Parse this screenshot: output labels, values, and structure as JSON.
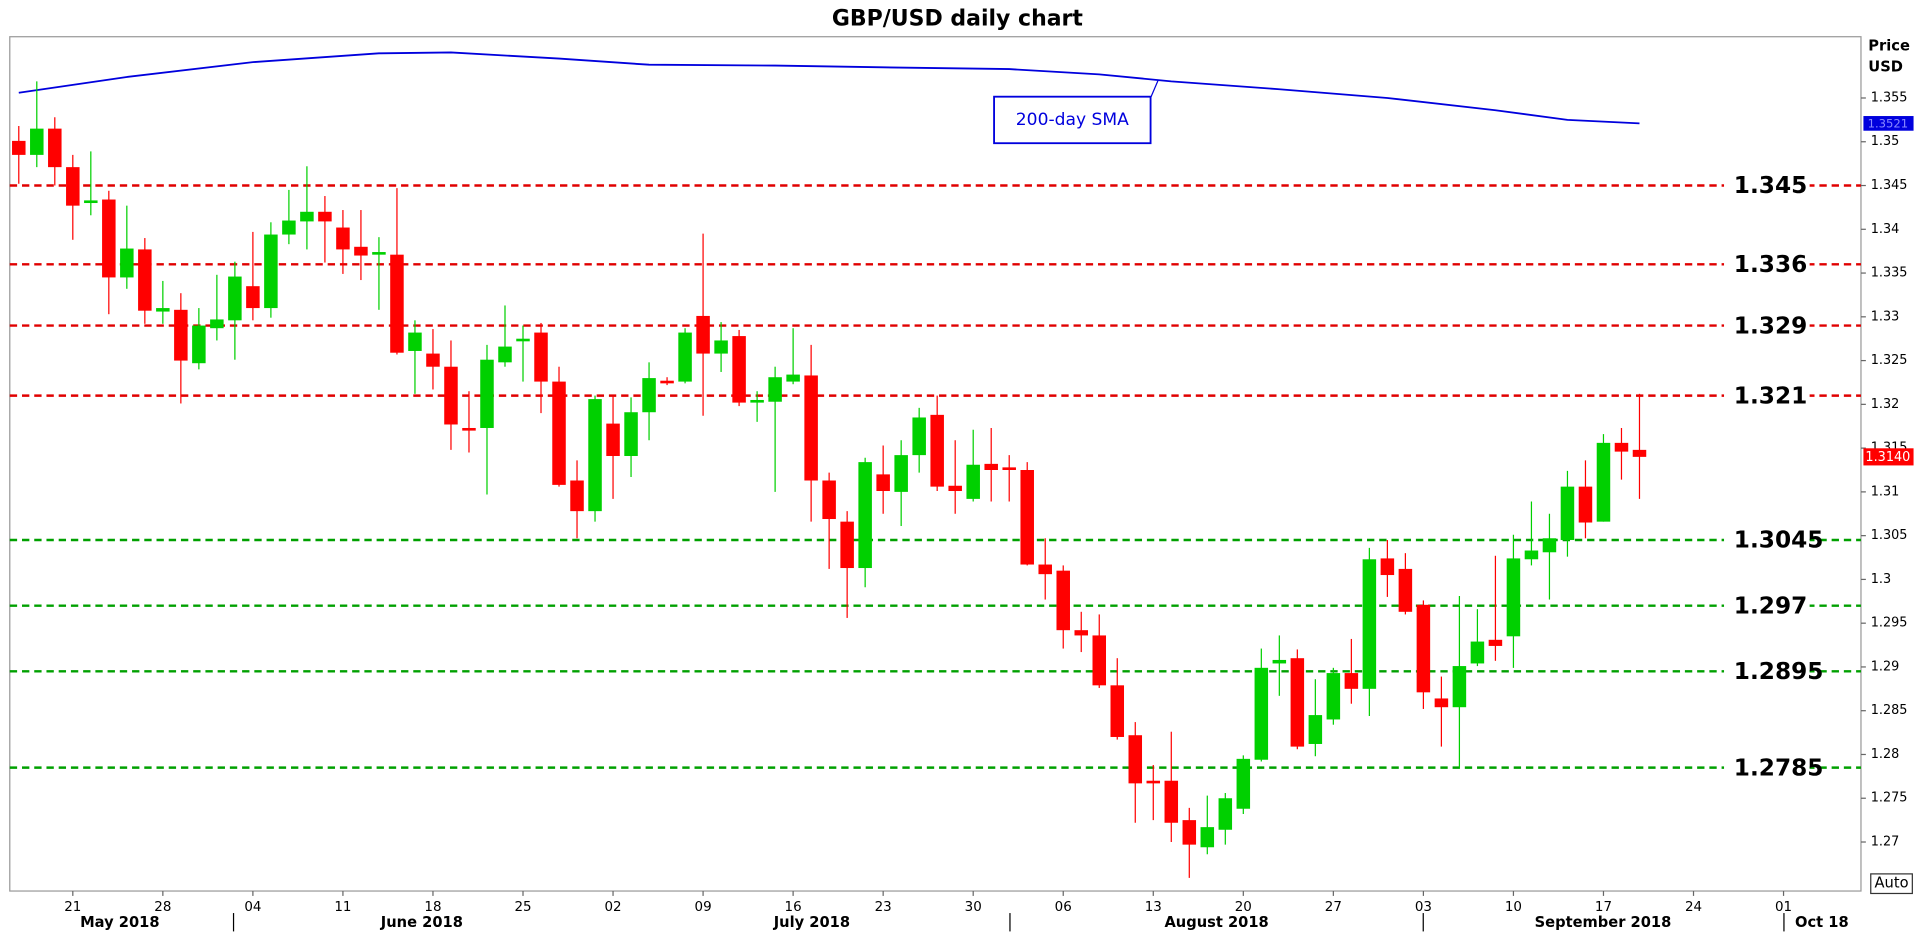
{
  "chart_data": {
    "type": "candlestick",
    "title": "GBP/USD daily chart",
    "y_axis_label": [
      "Price",
      "USD"
    ],
    "auto_label": "Auto",
    "xlim": [
      -0.5,
      102.3
    ],
    "ylim": [
      1.2644,
      1.362
    ],
    "yticks": [
      1.27,
      1.275,
      1.28,
      1.285,
      1.29,
      1.295,
      1.3,
      1.305,
      1.31,
      1.315,
      1.32,
      1.325,
      1.33,
      1.335,
      1.34,
      1.345,
      1.35,
      1.355
    ],
    "xticks": [
      {
        "value": 3,
        "label": "21"
      },
      {
        "value": 8,
        "label": "28"
      },
      {
        "value": 13,
        "label": "04"
      },
      {
        "value": 18,
        "label": "11"
      },
      {
        "value": 23,
        "label": "18"
      },
      {
        "value": 28,
        "label": "25"
      },
      {
        "value": 33,
        "label": "02"
      },
      {
        "value": 38,
        "label": "09"
      },
      {
        "value": 43,
        "label": "16"
      },
      {
        "value": 48,
        "label": "23"
      },
      {
        "value": 53,
        "label": "30"
      },
      {
        "value": 58,
        "label": "06"
      },
      {
        "value": 63,
        "label": "13"
      },
      {
        "value": 68,
        "label": "20"
      },
      {
        "value": 73,
        "label": "27"
      },
      {
        "value": 78,
        "label": "03"
      },
      {
        "value": 83,
        "label": "10"
      },
      {
        "value": 88,
        "label": "17"
      },
      {
        "value": 93,
        "label": "24"
      },
      {
        "value": 98,
        "label": "01"
      }
    ],
    "months": [
      "May 2018",
      "June 2018",
      "July 2018",
      "August 2018",
      "September 2018",
      "Oct 18"
    ],
    "up_color": "#00d000",
    "down_color": "#ff0000",
    "open": [
      1.3501,
      1.3485,
      1.3515,
      1.3471,
      1.343,
      1.3434,
      1.3345,
      1.3377,
      1.3306,
      1.3308,
      1.3247,
      1.3287,
      1.3296,
      1.3335,
      1.331,
      1.3394,
      1.3409,
      1.342,
      1.3402,
      1.338,
      1.3371,
      1.3371,
      1.3261,
      1.3258,
      1.3243,
      1.3173,
      1.3173,
      1.3248,
      1.3272,
      1.3282,
      1.3226,
      1.3113,
      1.3078,
      1.3178,
      1.3141,
      1.3191,
      1.3227,
      1.3226,
      1.3301,
      1.3258,
      1.3278,
      1.3202,
      1.3203,
      1.3226,
      1.3233,
      1.3113,
      1.3066,
      1.3013,
      1.312,
      1.31,
      1.3142,
      1.3188,
      1.3107,
      1.3092,
      1.3132,
      1.3128,
      1.3125,
      1.3017,
      1.301,
      1.2942,
      1.2936,
      1.2879,
      1.2822,
      1.277,
      1.277,
      1.2725,
      1.2694,
      1.2714,
      1.2738,
      1.2794,
      1.2904,
      1.291,
      1.2812,
      1.284,
      1.2893,
      1.2875,
      1.3024,
      1.3012,
      1.2971,
      1.2864,
      1.2854,
      1.2904,
      1.2931,
      1.2935,
      1.3023,
      1.3031,
      1.3045,
      1.3106,
      1.3066,
      1.3156,
      1.3148
    ],
    "high": [
      1.3518,
      1.3569,
      1.3528,
      1.3485,
      1.3489,
      1.3444,
      1.3427,
      1.339,
      1.3341,
      1.3327,
      1.331,
      1.3348,
      1.3363,
      1.3397,
      1.3408,
      1.3445,
      1.3472,
      1.3438,
      1.3422,
      1.3422,
      1.3391,
      1.3447,
      1.3296,
      1.3286,
      1.3273,
      1.3215,
      1.3268,
      1.3313,
      1.329,
      1.3293,
      1.3243,
      1.3136,
      1.321,
      1.321,
      1.3208,
      1.3248,
      1.3231,
      1.3287,
      1.3395,
      1.3294,
      1.3285,
      1.3215,
      1.3243,
      1.3287,
      1.3268,
      1.3122,
      1.3078,
      1.3139,
      1.3153,
      1.3159,
      1.3196,
      1.321,
      1.3159,
      1.3171,
      1.3173,
      1.3142,
      1.3134,
      1.3047,
      1.3016,
      1.2963,
      1.296,
      1.291,
      1.2837,
      1.2788,
      1.2826,
      1.2739,
      1.2753,
      1.2756,
      1.2799,
      1.2921,
      1.2936,
      1.292,
      1.2886,
      1.2899,
      1.2932,
      1.3036,
      1.3045,
      1.303,
      1.2976,
      1.2889,
      1.2981,
      1.2966,
      1.3027,
      1.3051,
      1.3089,
      1.3075,
      1.3124,
      1.3136,
      1.3166,
      1.3173,
      1.3212
    ],
    "low": [
      1.3452,
      1.3471,
      1.345,
      1.3388,
      1.3416,
      1.3303,
      1.3332,
      1.3292,
      1.3292,
      1.3201,
      1.324,
      1.3273,
      1.3251,
      1.3296,
      1.3299,
      1.3383,
      1.3377,
      1.3362,
      1.3349,
      1.3342,
      1.3308,
      1.3257,
      1.3212,
      1.3217,
      1.3148,
      1.3145,
      1.3097,
      1.3243,
      1.3226,
      1.319,
      1.3106,
      1.3047,
      1.3066,
      1.3092,
      1.3117,
      1.3159,
      1.3222,
      1.3224,
      1.3187,
      1.3237,
      1.3198,
      1.318,
      1.31,
      1.3223,
      1.3066,
      1.3012,
      1.2956,
      1.2991,
      1.3075,
      1.3061,
      1.3122,
      1.3101,
      1.3075,
      1.3089,
      1.3089,
      1.3089,
      1.3016,
      1.2977,
      1.2921,
      1.2917,
      1.2876,
      1.2817,
      1.2722,
      1.2725,
      1.27,
      1.2659,
      1.2686,
      1.2697,
      1.2732,
      1.2792,
      1.2867,
      1.2806,
      1.2798,
      1.2834,
      1.2858,
      1.2844,
      1.298,
      1.296,
      1.2852,
      1.2809,
      1.2785,
      1.2901,
      1.2907,
      1.2899,
      1.3016,
      1.2977,
      1.3026,
      1.3047,
      1.3066,
      1.3114,
      1.3092
    ],
    "close": [
      1.3485,
      1.3515,
      1.3471,
      1.3427,
      1.3433,
      1.3345,
      1.3378,
      1.3307,
      1.331,
      1.325,
      1.329,
      1.3297,
      1.3346,
      1.331,
      1.3394,
      1.341,
      1.342,
      1.3409,
      1.3377,
      1.337,
      1.3374,
      1.3259,
      1.3282,
      1.3243,
      1.3177,
      1.317,
      1.3251,
      1.3266,
      1.3275,
      1.3226,
      1.3108,
      1.3078,
      1.3206,
      1.3141,
      1.3191,
      1.323,
      1.3224,
      1.3282,
      1.3258,
      1.3273,
      1.3202,
      1.3205,
      1.3231,
      1.3234,
      1.3113,
      1.3069,
      1.3013,
      1.3134,
      1.3101,
      1.3142,
      1.3185,
      1.3106,
      1.3101,
      1.3131,
      1.3125,
      1.3125,
      1.3017,
      1.3006,
      1.2942,
      1.2936,
      1.2879,
      1.282,
      1.2767,
      1.2767,
      1.2722,
      1.2697,
      1.2717,
      1.275,
      1.2795,
      1.2899,
      1.2908,
      1.2809,
      1.2845,
      1.2893,
      1.2875,
      1.3023,
      1.3005,
      1.2963,
      1.2871,
      1.2854,
      1.2901,
      1.2929,
      1.2924,
      1.3024,
      1.3033,
      1.3047,
      1.3106,
      1.3065,
      1.3156,
      1.3146,
      1.314
    ],
    "last_price": {
      "value": 1.314,
      "label": "1.3140"
    },
    "sma": {
      "name": "200-day SMA",
      "color": "#0000dd",
      "x": [
        0,
        6,
        13,
        20,
        24,
        30,
        35,
        42,
        48,
        55,
        60,
        64,
        70,
        76,
        82,
        86,
        90
      ],
      "values": [
        1.3556,
        1.3574,
        1.3591,
        1.3601,
        1.3602,
        1.3595,
        1.3588,
        1.3587,
        1.3585,
        1.3583,
        1.3577,
        1.3569,
        1.356,
        1.355,
        1.3536,
        1.3525,
        1.3521
      ],
      "last_label": {
        "value": 1.3521,
        "label": "1.3521"
      }
    },
    "levels": [
      {
        "value": 1.345,
        "color": "#e00000"
      },
      {
        "value": 1.336,
        "color": "#e00000"
      },
      {
        "value": 1.329,
        "color": "#e00000"
      },
      {
        "value": 1.321,
        "color": "#e00000"
      },
      {
        "value": 1.3045,
        "color": "#00a000"
      },
      {
        "value": 1.297,
        "color": "#00a000"
      },
      {
        "value": 1.2895,
        "color": "#00a000"
      },
      {
        "value": 1.2785,
        "color": "#00a000"
      }
    ]
  }
}
